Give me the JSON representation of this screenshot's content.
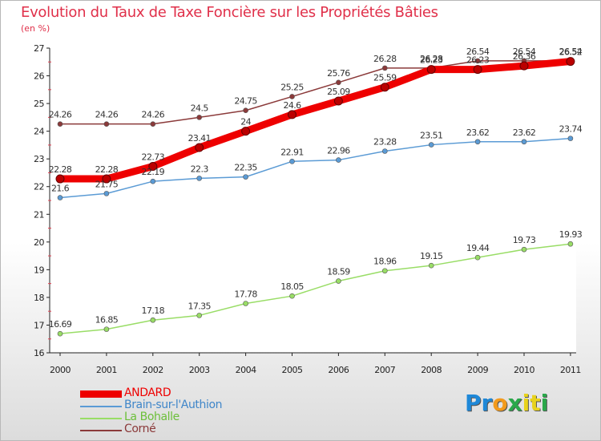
{
  "title": "Evolution du Taux de Taxe Foncière sur les Propriétés Bâties",
  "subtitle": "(en %)",
  "logo": {
    "letters": [
      {
        "ch": "P",
        "color": "#1e88d8"
      },
      {
        "ch": "r",
        "color": "#1e88d8"
      },
      {
        "ch": "o",
        "color": "#f29a1c"
      },
      {
        "ch": "x",
        "color": "#2aa84a"
      },
      {
        "ch": "i",
        "color": "#e8d21c"
      },
      {
        "ch": "t",
        "color": "#e8d21c"
      },
      {
        "ch": "i",
        "color": "#2aa84a"
      }
    ]
  },
  "chart_data": {
    "type": "line",
    "x": [
      "2000",
      "2001",
      "2002",
      "2003",
      "2004",
      "2005",
      "2006",
      "2007",
      "2008",
      "2009",
      "2010",
      "2011"
    ],
    "ylim": [
      16,
      27
    ],
    "yticks": [
      "16",
      "17",
      "18",
      "19",
      "20",
      "21",
      "22",
      "23",
      "24",
      "25",
      "26",
      "27"
    ],
    "grid": false,
    "legend_position": "bottom-left",
    "series": [
      {
        "name": "ANDARD",
        "color": "#ee0000",
        "values": [
          22.28,
          22.28,
          22.73,
          23.41,
          24,
          24.6,
          25.09,
          25.59,
          26.23,
          26.23,
          26.36,
          26.52
        ],
        "labels": [
          "22.28",
          "22.28",
          "22.73",
          "23.41",
          "24",
          "24.6",
          "25.09",
          "25.59",
          "26.23",
          "26.23",
          "26.36",
          "26.52"
        ]
      },
      {
        "name": "Brain-sur-l'Authion",
        "color": "#5b9bd5",
        "values": [
          21.6,
          21.75,
          22.19,
          22.3,
          22.35,
          22.91,
          22.96,
          23.28,
          23.51,
          23.62,
          23.62,
          23.74
        ],
        "labels": [
          "21.6",
          "21.75",
          "22.19",
          "22.3",
          "22.35",
          "22.91",
          "22.96",
          "23.28",
          "23.51",
          "23.62",
          "23.62",
          "23.74"
        ]
      },
      {
        "name": "La Bohalle",
        "color": "#99dd66",
        "values": [
          16.69,
          16.85,
          17.18,
          17.35,
          17.78,
          18.05,
          18.59,
          18.96,
          19.15,
          19.44,
          19.73,
          19.93
        ],
        "labels": [
          "16.69",
          "16.85",
          "17.18",
          "17.35",
          "17.78",
          "18.05",
          "18.59",
          "18.96",
          "19.15",
          "19.44",
          "19.73",
          "19.93"
        ]
      },
      {
        "name": "Corné",
        "color": "#8b3a3a",
        "values": [
          24.26,
          24.26,
          24.26,
          24.5,
          24.75,
          25.25,
          25.76,
          26.28,
          26.28,
          26.54,
          26.54,
          26.54
        ],
        "labels": [
          "24.26",
          "24.26",
          "24.26",
          "24.5",
          "24.75",
          "25.25",
          "25.76",
          "26.28",
          "26.28",
          "26.54",
          "26.54",
          "26.54"
        ]
      }
    ]
  }
}
